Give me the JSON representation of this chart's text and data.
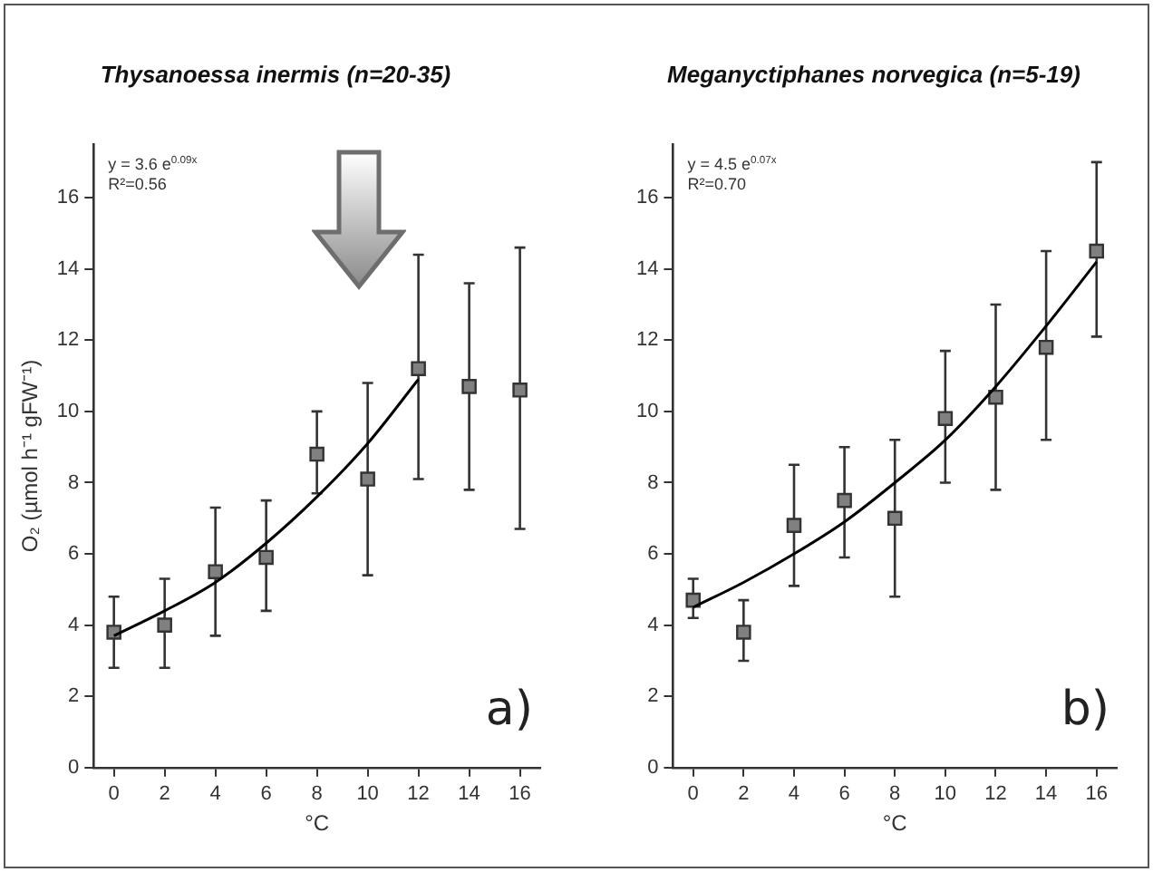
{
  "chart_data": [
    {
      "type": "scatter",
      "title": "Thysanoessa inermis (n=20-35)",
      "xlabel": "°C",
      "ylabel": "O₂ (µmol h⁻¹ gFW⁻¹)",
      "xlim": [
        -0.8,
        16.8
      ],
      "xticks": [
        0,
        2,
        4,
        6,
        8,
        10,
        12,
        14,
        16
      ],
      "ylim": [
        0,
        17.5
      ],
      "yticks": [
        0,
        2,
        4,
        6,
        8,
        10,
        12,
        14,
        16
      ],
      "grid": false,
      "legend": false,
      "annotations": [
        "y = 3.6 e$^{0.09x}$",
        "R²=0.56",
        "a)"
      ],
      "series": [
        {
          "marker": "square",
          "color": "#808080",
          "x": [
            0,
            2,
            4,
            6,
            8,
            10,
            12,
            14,
            16
          ],
          "values": [
            3.8,
            4.0,
            5.5,
            5.9,
            8.8,
            8.1,
            11.2,
            10.7,
            10.6
          ],
          "errors": [
            [
              2.8,
              4.8
            ],
            [
              2.8,
              5.3
            ],
            [
              3.7,
              7.3
            ],
            [
              4.4,
              7.5
            ],
            [
              7.7,
              10.0
            ],
            [
              5.4,
              10.8
            ],
            [
              8.1,
              14.4
            ],
            [
              7.8,
              13.6
            ],
            [
              6.7,
              14.6
            ]
          ]
        },
        {
          "type": "line",
          "marker": "none",
          "color": "#000000",
          "x": [
            0,
            2,
            4,
            6,
            8,
            10,
            12
          ],
          "values": [
            3.7,
            4.4,
            5.2,
            6.3,
            7.6,
            9.1,
            10.9
          ]
        }
      ]
    },
    {
      "type": "scatter",
      "title": "Meganyctiphanes norvegica (n=5-19)",
      "xlabel": "°C",
      "xlim": [
        -0.8,
        16.8
      ],
      "xticks": [
        0,
        2,
        4,
        6,
        8,
        10,
        12,
        14,
        16
      ],
      "ylim": [
        0,
        17.5
      ],
      "yticks": [
        0,
        2,
        4,
        6,
        8,
        10,
        12,
        14,
        16
      ],
      "grid": false,
      "legend": false,
      "annotations": [
        "y = 4.5 e$^{0.07x}$",
        "R²=0.70",
        "b)"
      ],
      "series": [
        {
          "marker": "square",
          "color": "#808080",
          "x": [
            0,
            2,
            4,
            6,
            8,
            10,
            12,
            14,
            16
          ],
          "values": [
            4.7,
            3.8,
            6.8,
            7.5,
            7.0,
            9.8,
            10.4,
            11.8,
            14.5
          ],
          "errors": [
            [
              4.2,
              5.3
            ],
            [
              3.0,
              4.7
            ],
            [
              5.1,
              8.5
            ],
            [
              5.9,
              9.0
            ],
            [
              4.8,
              9.2
            ],
            [
              8.0,
              11.7
            ],
            [
              7.8,
              13.0
            ],
            [
              9.2,
              14.5
            ],
            [
              12.1,
              17.0
            ]
          ]
        },
        {
          "type": "line",
          "marker": "none",
          "color": "#000000",
          "x": [
            0,
            2,
            4,
            6,
            8,
            10,
            12,
            14,
            16
          ],
          "values": [
            4.5,
            5.2,
            6.0,
            6.9,
            8.0,
            9.2,
            10.7,
            12.4,
            14.2
          ]
        }
      ]
    }
  ]
}
